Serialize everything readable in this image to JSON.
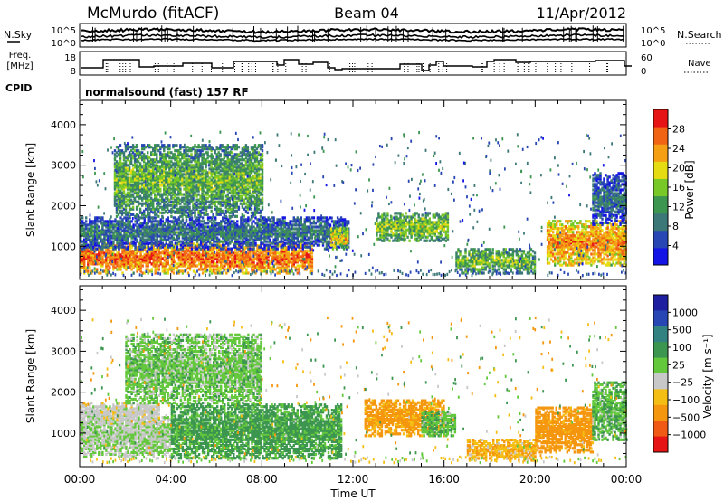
{
  "header": {
    "station": "McMurdo (fitACF)",
    "beam": "Beam 04",
    "date": "11/Apr/2012"
  },
  "noise_panel": {
    "left_label": "N.Sky",
    "right_label": "N.Search",
    "left_ticks": [
      "10^5",
      "10^0"
    ],
    "right_ticks": [
      "10^5",
      "10^0"
    ]
  },
  "freq_panel": {
    "left_label_1": "Freq.",
    "left_label_2": "[MHz]",
    "left_ticks": [
      "18",
      "8"
    ],
    "right_label": "Nave",
    "right_ticks": [
      "60",
      "0"
    ]
  },
  "cpid": {
    "label": "CPID",
    "value": "normalsound (fast) 157 RF"
  },
  "colors": {
    "power_scale": [
      "#1414e6",
      "#2846b4",
      "#3c7878",
      "#3c9650",
      "#78c828",
      "#e6dc14",
      "#f5a014",
      "#f06414",
      "#e61414"
    ],
    "velocity_scale": [
      "#e61414",
      "#f05a14",
      "#f5960f",
      "#f5be14",
      "#c8c8c8",
      "#64c83c",
      "#3c9650",
      "#328282",
      "#2846b4",
      "#1e1ea0"
    ]
  },
  "chart_data": [
    {
      "type": "heatmap",
      "name": "power",
      "ylabel": "Slant Range [km]",
      "ylim": [
        180,
        4600
      ],
      "yticks": [
        "1000",
        "2000",
        "3000",
        "4000"
      ],
      "xlim": [
        0,
        24
      ],
      "colorbar": {
        "label": "Power [dB]",
        "range": [
          0,
          32
        ],
        "ticks": [
          "4",
          "8",
          "12",
          "16",
          "20",
          "24",
          "28"
        ]
      },
      "echo_regions": [
        {
          "t0": 0.0,
          "t1": 10.2,
          "r_lo": 300,
          "r_hi": 1050,
          "value": 27
        },
        {
          "t0": 0.0,
          "t1": 11.8,
          "r_lo": 900,
          "r_hi": 1700,
          "value": 10
        },
        {
          "t0": 1.5,
          "t1": 8.0,
          "r_lo": 1700,
          "r_hi": 3500,
          "value": 15
        },
        {
          "t0": 11.0,
          "t1": 11.8,
          "r_lo": 900,
          "r_hi": 1400,
          "value": 22
        },
        {
          "t0": 13.0,
          "t1": 16.2,
          "r_lo": 1100,
          "r_hi": 1800,
          "value": 17
        },
        {
          "t0": 16.5,
          "t1": 20.0,
          "r_lo": 300,
          "r_hi": 900,
          "value": 16
        },
        {
          "t0": 20.5,
          "t1": 24.0,
          "r_lo": 500,
          "r_hi": 1600,
          "value": 25
        },
        {
          "t0": 22.5,
          "t1": 24.0,
          "r_lo": 1500,
          "r_hi": 2800,
          "value": 9
        }
      ]
    },
    {
      "type": "heatmap",
      "name": "velocity",
      "ylabel": "Slant Range [km]",
      "ylim": [
        180,
        4600
      ],
      "yticks": [
        "1000",
        "2000",
        "3000",
        "4000"
      ],
      "xlabel": "Time UT",
      "xlim": [
        0,
        24
      ],
      "xticks": [
        "00:00",
        "04:00",
        "08:00",
        "12:00",
        "16:00",
        "20:00",
        "00:00"
      ],
      "colorbar": {
        "label": "Velocity [m s⁻¹]",
        "ticks": [
          "1000",
          "500",
          "100",
          "25",
          "−25",
          "−100",
          "−500",
          "−1000"
        ]
      },
      "echo_regions": [
        {
          "t0": 0.0,
          "t1": 4.0,
          "r_lo": 400,
          "r_hi": 1400,
          "value": 20
        },
        {
          "t0": 0.0,
          "t1": 3.5,
          "r_lo": 1200,
          "r_hi": 1700,
          "value": 0
        },
        {
          "t0": 4.0,
          "t1": 11.5,
          "r_lo": 350,
          "r_hi": 1700,
          "value": 150
        },
        {
          "t0": 2.0,
          "t1": 8.0,
          "r_lo": 1700,
          "r_hi": 3400,
          "value": 60
        },
        {
          "t0": 12.5,
          "t1": 16.0,
          "r_lo": 900,
          "r_hi": 1800,
          "value": -150
        },
        {
          "t0": 15.0,
          "t1": 16.5,
          "r_lo": 900,
          "r_hi": 1500,
          "value": 80
        },
        {
          "t0": 20.0,
          "t1": 22.5,
          "r_lo": 500,
          "r_hi": 1600,
          "value": -200
        },
        {
          "t0": 22.5,
          "t1": 24.0,
          "r_lo": 800,
          "r_hi": 2200,
          "value": 90
        },
        {
          "t0": 17.0,
          "t1": 20.0,
          "r_lo": 300,
          "r_hi": 800,
          "value": -80
        }
      ]
    }
  ]
}
